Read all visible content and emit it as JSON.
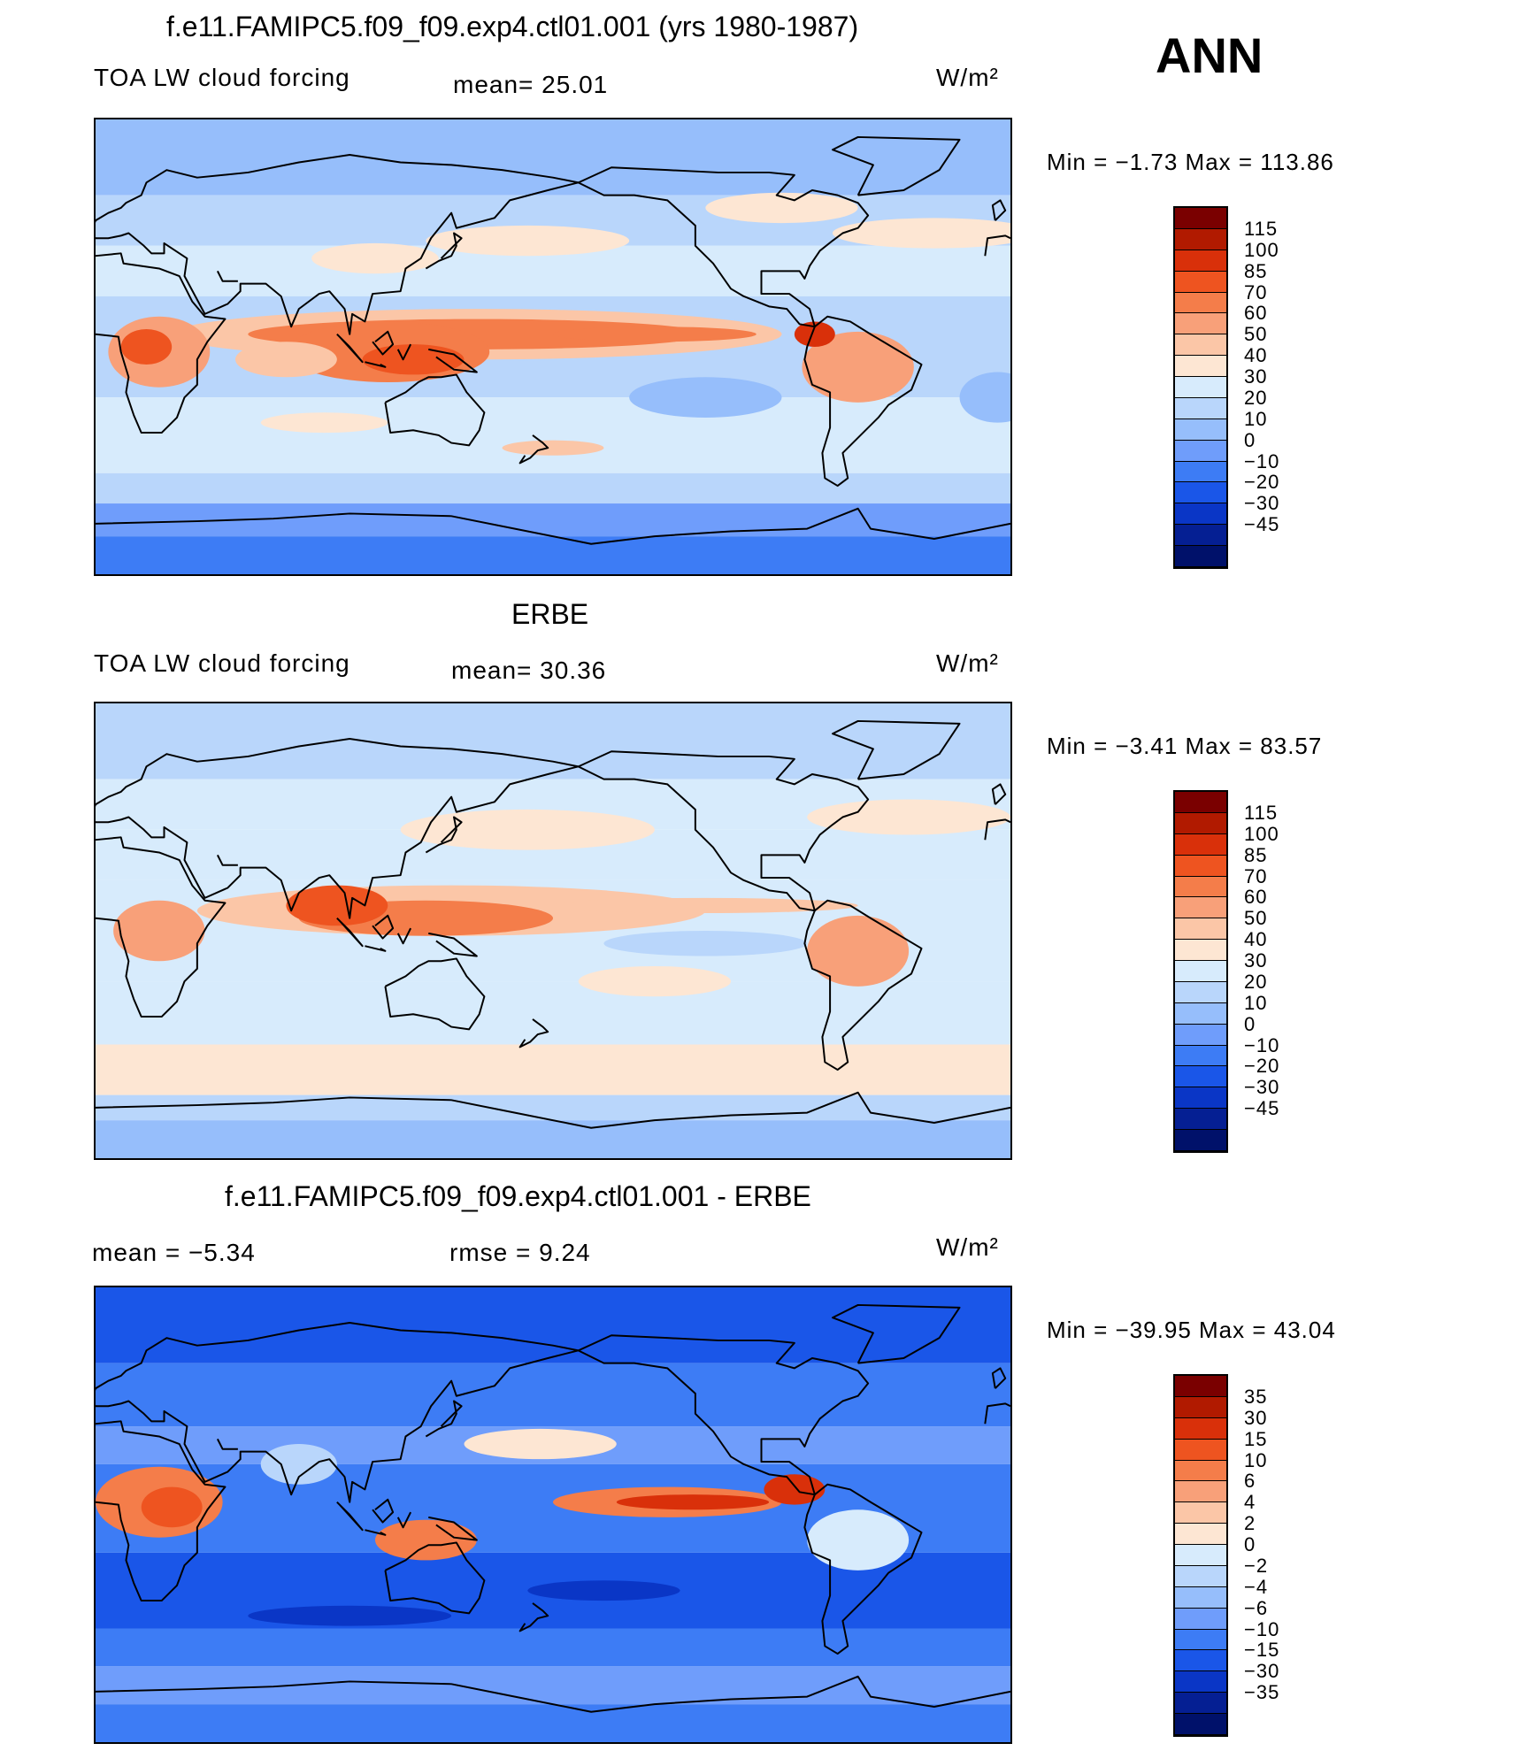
{
  "season": "ANN",
  "units_label": "W/m²",
  "panels": [
    {
      "title": "f.e11.FAMIPC5.f09_f09.exp4.ctl01.001 (yrs 1980-1987)",
      "left_label": "TOA LW cloud forcing",
      "center_label": "mean=   25.01",
      "range_label": "Min  =    −1.73  Max  =  113.86",
      "colorbar": {
        "levels": [
          "115",
          "100",
          "85",
          "70",
          "60",
          "50",
          "40",
          "30",
          "20",
          "10",
          "0",
          "−10",
          "−20",
          "−30",
          "−45"
        ],
        "colors": [
          "#7a0000",
          "#b11a00",
          "#d9300a",
          "#ee5420",
          "#f47d4a",
          "#f8a079",
          "#fbc6a7",
          "#fde6d3",
          "#d7ebfc",
          "#b9d6fb",
          "#96befb",
          "#6f9dfb",
          "#3d7cf5",
          "#1a56e8",
          "#0a36c6",
          "#051f93",
          "#00116a"
        ]
      },
      "scene": "model"
    },
    {
      "title": "ERBE",
      "left_label": "TOA LW cloud forcing",
      "center_label": "mean=   30.36",
      "range_label": "Min  =    −3.41  Max  =    83.57",
      "colorbar": {
        "levels": [
          "115",
          "100",
          "85",
          "70",
          "60",
          "50",
          "40",
          "30",
          "20",
          "10",
          "0",
          "−10",
          "−20",
          "−30",
          "−45"
        ],
        "colors": [
          "#7a0000",
          "#b11a00",
          "#d9300a",
          "#ee5420",
          "#f47d4a",
          "#f8a079",
          "#fbc6a7",
          "#fde6d3",
          "#d7ebfc",
          "#b9d6fb",
          "#96befb",
          "#6f9dfb",
          "#3d7cf5",
          "#1a56e8",
          "#0a36c6",
          "#051f93",
          "#00116a"
        ]
      },
      "scene": "obs"
    },
    {
      "title": "f.e11.FAMIPC5.f09_f09.exp4.ctl01.001 - ERBE",
      "left_label": "mean  =    −5.34",
      "center_label": "rmse  =     9.24",
      "range_label": "Min  =  −39.95  Max  =    43.04",
      "colorbar": {
        "levels": [
          "35",
          "30",
          "15",
          "10",
          "6",
          "4",
          "2",
          "0",
          "−2",
          "−4",
          "−6",
          "−10",
          "−15",
          "−30",
          "−35"
        ],
        "colors": [
          "#7a0000",
          "#b11a00",
          "#d9300a",
          "#ee5420",
          "#f47d4a",
          "#f8a079",
          "#fbc6a7",
          "#fde6d3",
          "#d7ebfc",
          "#b9d6fb",
          "#96befb",
          "#6f9dfb",
          "#3d7cf5",
          "#1a56e8",
          "#0a36c6",
          "#051f93",
          "#00116a"
        ]
      },
      "scene": "diff"
    }
  ]
}
